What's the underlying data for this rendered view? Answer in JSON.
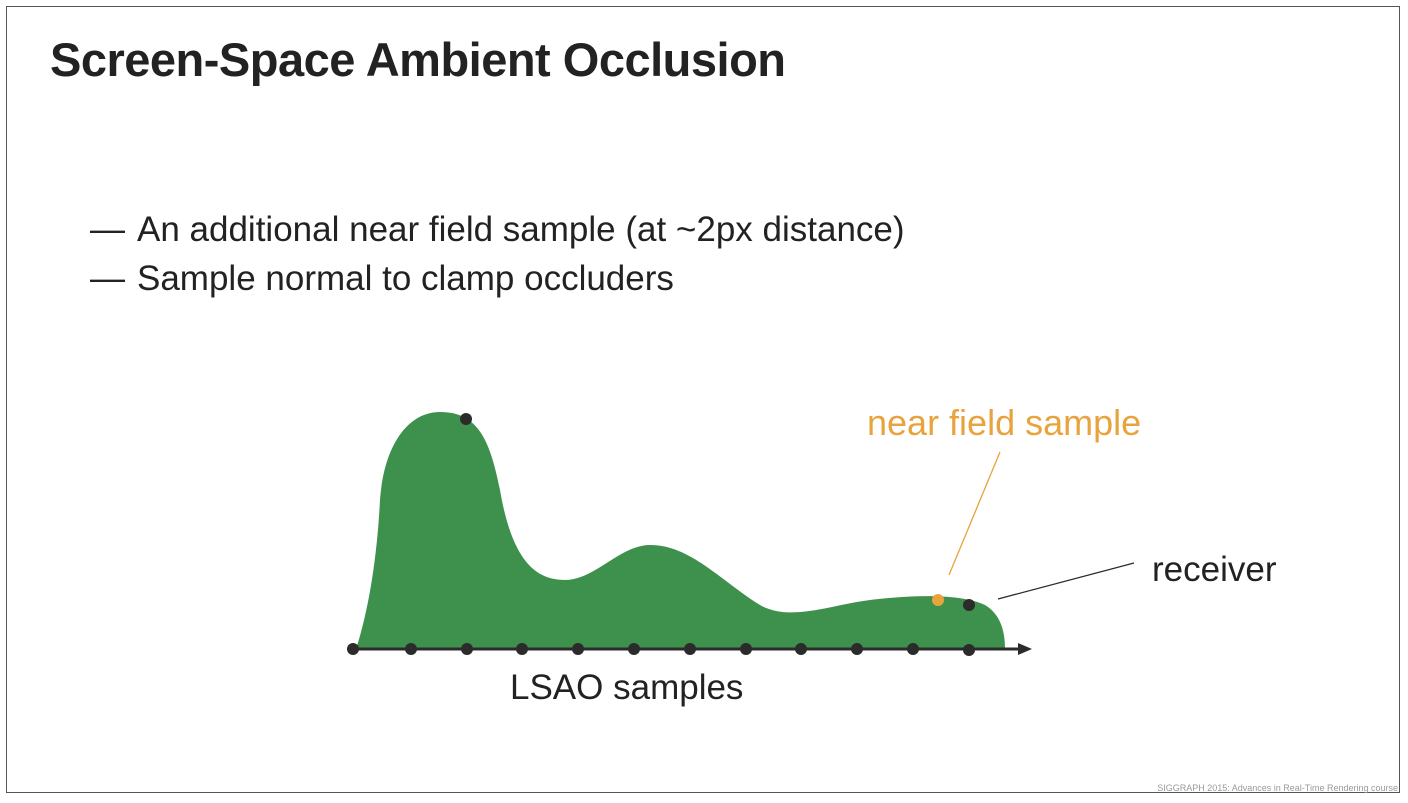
{
  "slide": {
    "title": "Screen-Space Ambient Occlusion",
    "bullets": [
      {
        "dash": "—",
        "text": "An additional near field sample (at ~2px distance)"
      },
      {
        "dash": "—",
        "text": "Sample normal to clamp occluders"
      }
    ],
    "footer": "SIGGRAPH 2015: Advances in Real-Time Rendering course"
  },
  "diagram": {
    "labels": {
      "near_field": "near field sample",
      "receiver": "receiver",
      "lsao": "LSAO samples"
    },
    "colors": {
      "terrain": "#3e914d",
      "sample_dot": "#2b2b2b",
      "near_field": "#e8a33c",
      "axis": "#2b2b2b",
      "label_text": "#222222"
    }
  }
}
